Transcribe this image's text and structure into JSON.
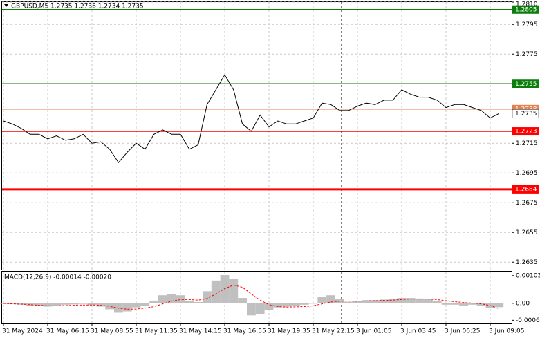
{
  "chart_data": [
    {
      "type": "line",
      "title": "GBPUSD,M5  1.2735 1.2736 1.2734 1.2735",
      "categories": [
        "31 May 2024",
        null,
        null,
        null,
        null,
        "31 May 06:15",
        null,
        null,
        null,
        null,
        "31 May 08:55",
        null,
        null,
        null,
        null,
        "31 May 11:35",
        null,
        null,
        null,
        null,
        "31 May 14:15",
        null,
        null,
        null,
        null,
        "31 May 16:55",
        null,
        null,
        null,
        null,
        "31 May 19:35",
        null,
        null,
        null,
        null,
        "31 May 22:15",
        null,
        null,
        null,
        null,
        "3 Jun 01:05",
        null,
        null,
        null,
        null,
        "3 Jun 03:45",
        null,
        null,
        null,
        null,
        "3 Jun 06:25",
        null,
        null,
        null,
        null,
        "3 Jun 09:05",
        null
      ],
      "series": [
        {
          "name": "GBPUSD",
          "color": "#000000",
          "values": [
            1.273,
            1.2728,
            1.2725,
            1.2721,
            1.2721,
            1.2718,
            1.272,
            1.2717,
            1.2718,
            1.2721,
            1.2715,
            1.2716,
            1.2711,
            1.2702,
            1.2709,
            1.2715,
            1.2711,
            1.2721,
            1.2724,
            1.2721,
            1.2721,
            1.2711,
            1.2714,
            1.2741,
            1.2751,
            1.2761,
            1.2751,
            1.2728,
            1.2723,
            1.2734,
            1.2726,
            1.273,
            1.2728,
            1.2728,
            1.273,
            1.2732,
            1.2742,
            1.2741,
            1.2737,
            1.2737,
            1.274,
            1.2742,
            1.2741,
            1.2744,
            1.2744,
            1.2751,
            1.2748,
            1.2746,
            1.2746,
            1.2744,
            1.2739,
            1.2741,
            1.2741,
            1.2739,
            1.2737,
            1.2732,
            1.2735
          ]
        }
      ],
      "ylim": [
        1.263,
        1.281
      ],
      "yticks": [
        {
          "value": 1.281,
          "label": "1.2810"
        },
        1.2795,
        1.2775,
        1.2715,
        1.2695,
        1.2675,
        1.2655,
        1.2635
      ],
      "levels": [
        {
          "value": 1.2805,
          "color": "#0a7d0a"
        },
        {
          "value": 1.2755,
          "color": "#0a7d0a"
        },
        {
          "value": 1.2738,
          "color": "#e8804a"
        },
        {
          "value": 1.2723,
          "color": "#ff0000"
        },
        {
          "value": 1.2684,
          "color": "#ff0000"
        }
      ],
      "grid": true
    },
    {
      "type": "macd",
      "title": "MACD(12,26,9) -0.00014 -0.00020",
      "series": [
        {
          "name": "MACD",
          "color": "#c0c0c0",
          "values": [
            -2e-05,
            -3e-05,
            -5e-05,
            -8e-05,
            -0.0001,
            -0.00012,
            -8e-05,
            -5e-05,
            -4e-05,
            -2e-05,
            -6e-05,
            -0.00012,
            -0.00022,
            -0.00035,
            -0.0003,
            -0.00015,
            -0.0001,
            0.0001,
            0.0003,
            0.00035,
            0.0003,
            0.0001,
            5e-05,
            0.00045,
            0.00085,
            0.00105,
            0.0009,
            0.0002,
            -0.00045,
            -0.0004,
            -0.00025,
            -0.00015,
            -0.00012,
            -0.0001,
            -5e-05,
            0.0,
            0.00025,
            0.0003,
            0.00015,
            5e-05,
            8e-05,
            0.00012,
            0.00012,
            0.00014,
            0.00016,
            0.0002,
            0.0002,
            0.00018,
            0.00015,
            0.0001,
            -5e-05,
            -5e-05,
            -8e-05,
            -5e-05,
            -0.0001,
            -0.00018,
            -0.00014
          ]
        },
        {
          "name": "Signal",
          "color": "#ff0000",
          "values": [
            0.0,
            -2e-05,
            -3e-05,
            -5e-05,
            -7e-05,
            -9e-05,
            -9e-05,
            -8e-05,
            -7e-05,
            -6e-05,
            -6e-05,
            -7e-05,
            -0.00011,
            -0.00018,
            -0.00022,
            -0.00021,
            -0.00018,
            -0.00012,
            -2e-05,
            8e-05,
            0.00014,
            0.00014,
            0.00012,
            0.00018,
            0.00035,
            0.00055,
            0.00068,
            0.0006,
            0.00035,
            0.00012,
            -5e-05,
            -0.00012,
            -0.00014,
            -0.00013,
            -0.00012,
            -9e-05,
            -2e-05,
            5e-05,
            8e-05,
            8e-05,
            8e-05,
            9e-05,
            0.0001,
            0.00011,
            0.00012,
            0.00014,
            0.00016,
            0.00016,
            0.00016,
            0.00014,
            0.0001,
            6e-05,
            3e-05,
            1e-05,
            -2e-05,
            -8e-05,
            -0.0002
          ]
        }
      ],
      "ylim": [
        -0.00075,
        0.00118
      ],
      "yticks": [
        0.00103,
        {
          "value": 0,
          "label": "0.00"
        },
        -0.00063
      ]
    }
  ]
}
